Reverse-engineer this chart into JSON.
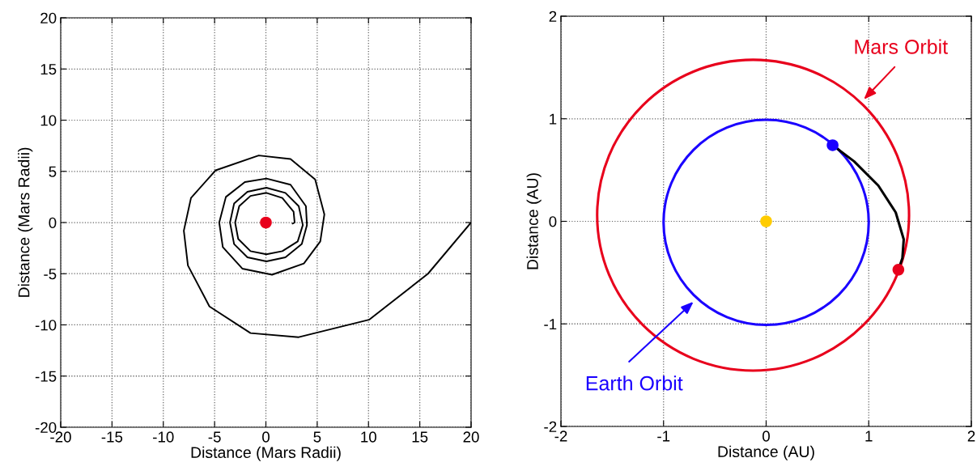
{
  "chart_data": [
    {
      "type": "line",
      "xlabel": "Distance (Mars Radii)",
      "ylabel": "Distance (Mars Radii)",
      "xlim": [
        -20,
        20
      ],
      "ylim": [
        -20,
        20
      ],
      "xticks": [
        -20,
        -15,
        -10,
        -5,
        0,
        5,
        10,
        15,
        20
      ],
      "yticks": [
        -20,
        -15,
        -10,
        -5,
        0,
        5,
        10,
        15,
        20
      ],
      "grid": true,
      "series": [
        {
          "type": "line",
          "color": "#000000",
          "x": [
            20,
            15.8,
            10.05,
            3.2,
            -1.5,
            -5.5,
            -7.6,
            -8.0,
            -7.3,
            -4.9,
            -0.7,
            2.4,
            4.8,
            5.7,
            5.3,
            3.7,
            0.6,
            -2.3,
            -4.2,
            -4.55,
            -3.9,
            -2.05,
            0.05,
            2.4,
            3.9,
            4.0,
            3.5,
            1.9,
            0.05,
            -1.8,
            -3.1,
            -3.5,
            -3.1,
            -1.8,
            0.05,
            1.9,
            3.2,
            3.6,
            3.1,
            1.6,
            0.05,
            -1.5,
            -2.7,
            -3.0,
            -2.6,
            -1.5,
            0.05,
            1.6,
            2.7,
            2.8,
            2.6
          ],
          "values": [
            0,
            -5.0,
            -9.5,
            -11.2,
            -10.8,
            -8.2,
            -4.2,
            -0.8,
            2.4,
            5.1,
            6.55,
            6.2,
            4.2,
            0.8,
            -1.85,
            -4.0,
            -5.1,
            -4.5,
            -2.4,
            0,
            2.5,
            3.95,
            4.3,
            3.7,
            1.6,
            -0.25,
            -2.1,
            -3.4,
            -3.8,
            -3.4,
            -2.1,
            0,
            1.85,
            3.0,
            3.4,
            2.9,
            1.6,
            -0.25,
            -1.85,
            -2.8,
            -3.1,
            -2.8,
            -1.6,
            0,
            1.6,
            2.6,
            2.9,
            2.4,
            1.05,
            0,
            -0.1
          ]
        },
        {
          "type": "scatter",
          "color": "#e8001c",
          "marker": "circle",
          "x": [
            0
          ],
          "values": [
            0
          ]
        }
      ]
    },
    {
      "type": "line",
      "xlabel": "Distance (AU)",
      "ylabel": "Distance (AU)",
      "xlim": [
        -2,
        2
      ],
      "ylim": [
        -2,
        2
      ],
      "xticks": [
        -2,
        -1,
        0,
        1,
        2
      ],
      "yticks": [
        -2,
        -1,
        0,
        1,
        2
      ],
      "grid": true,
      "annotations": [
        "Mars Orbit",
        "Earth Orbit"
      ],
      "series": [
        {
          "type": "line",
          "color": "#000000",
          "x": [
            0.648,
            0.857,
            1.093,
            1.263,
            1.341,
            1.328,
            1.289
          ],
          "values": [
            0.742,
            0.585,
            0.349,
            0.087,
            -0.176,
            -0.359,
            -0.472
          ]
        },
        {
          "type": "scatter",
          "color": "#ffcc00",
          "marker": "circle",
          "x": [
            0
          ],
          "values": [
            0
          ]
        },
        {
          "type": "scatter",
          "color": "#1a00ff",
          "marker": "circle",
          "x": [
            0.648
          ],
          "values": [
            0.742
          ]
        },
        {
          "type": "scatter",
          "color": "#e8001c",
          "marker": "circle",
          "x": [
            1.289
          ],
          "values": [
            -0.472
          ]
        }
      ]
    }
  ]
}
